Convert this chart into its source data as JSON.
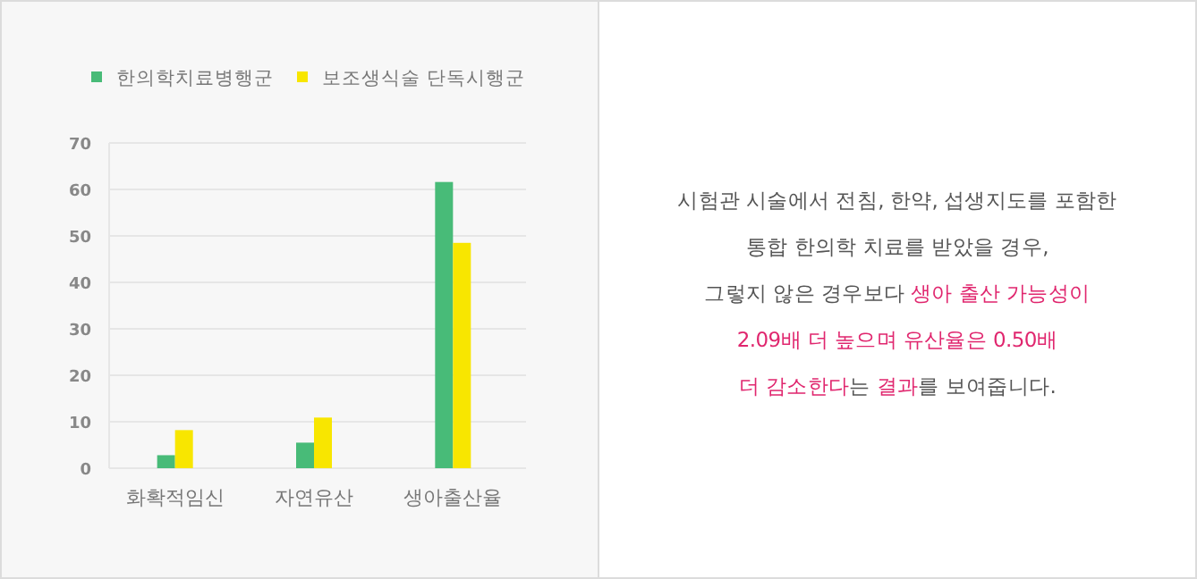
{
  "chart_data": {
    "type": "bar",
    "categories": [
      "화확적임신",
      "자연유산",
      "생아출산율"
    ],
    "series": [
      {
        "name": "한의학치료병행군",
        "color": "#48bb78",
        "values": [
          2.8,
          5.5,
          61.6
        ]
      },
      {
        "name": "보조생식술 단독시행군",
        "color": "#f8e600",
        "values": [
          8.2,
          10.9,
          48.5
        ]
      }
    ],
    "ylim": [
      0,
      70
    ],
    "yticks": [
      0,
      10,
      20,
      30,
      40,
      50,
      60,
      70
    ],
    "grid": "y",
    "legend": "top",
    "annotations": [
      "시험관 시술에서 전침, 한약, 섭생지도를 포함한\n통합 한의학 치료를 받았을 경우,\n그렇지 않은 경우보다 ",
      "생아 출산 가능성이\n2.09배 더 높으며 유산율은 0.50배\n더 감소한다",
      "는 ",
      "결과",
      "를 보여줍니다."
    ]
  }
}
